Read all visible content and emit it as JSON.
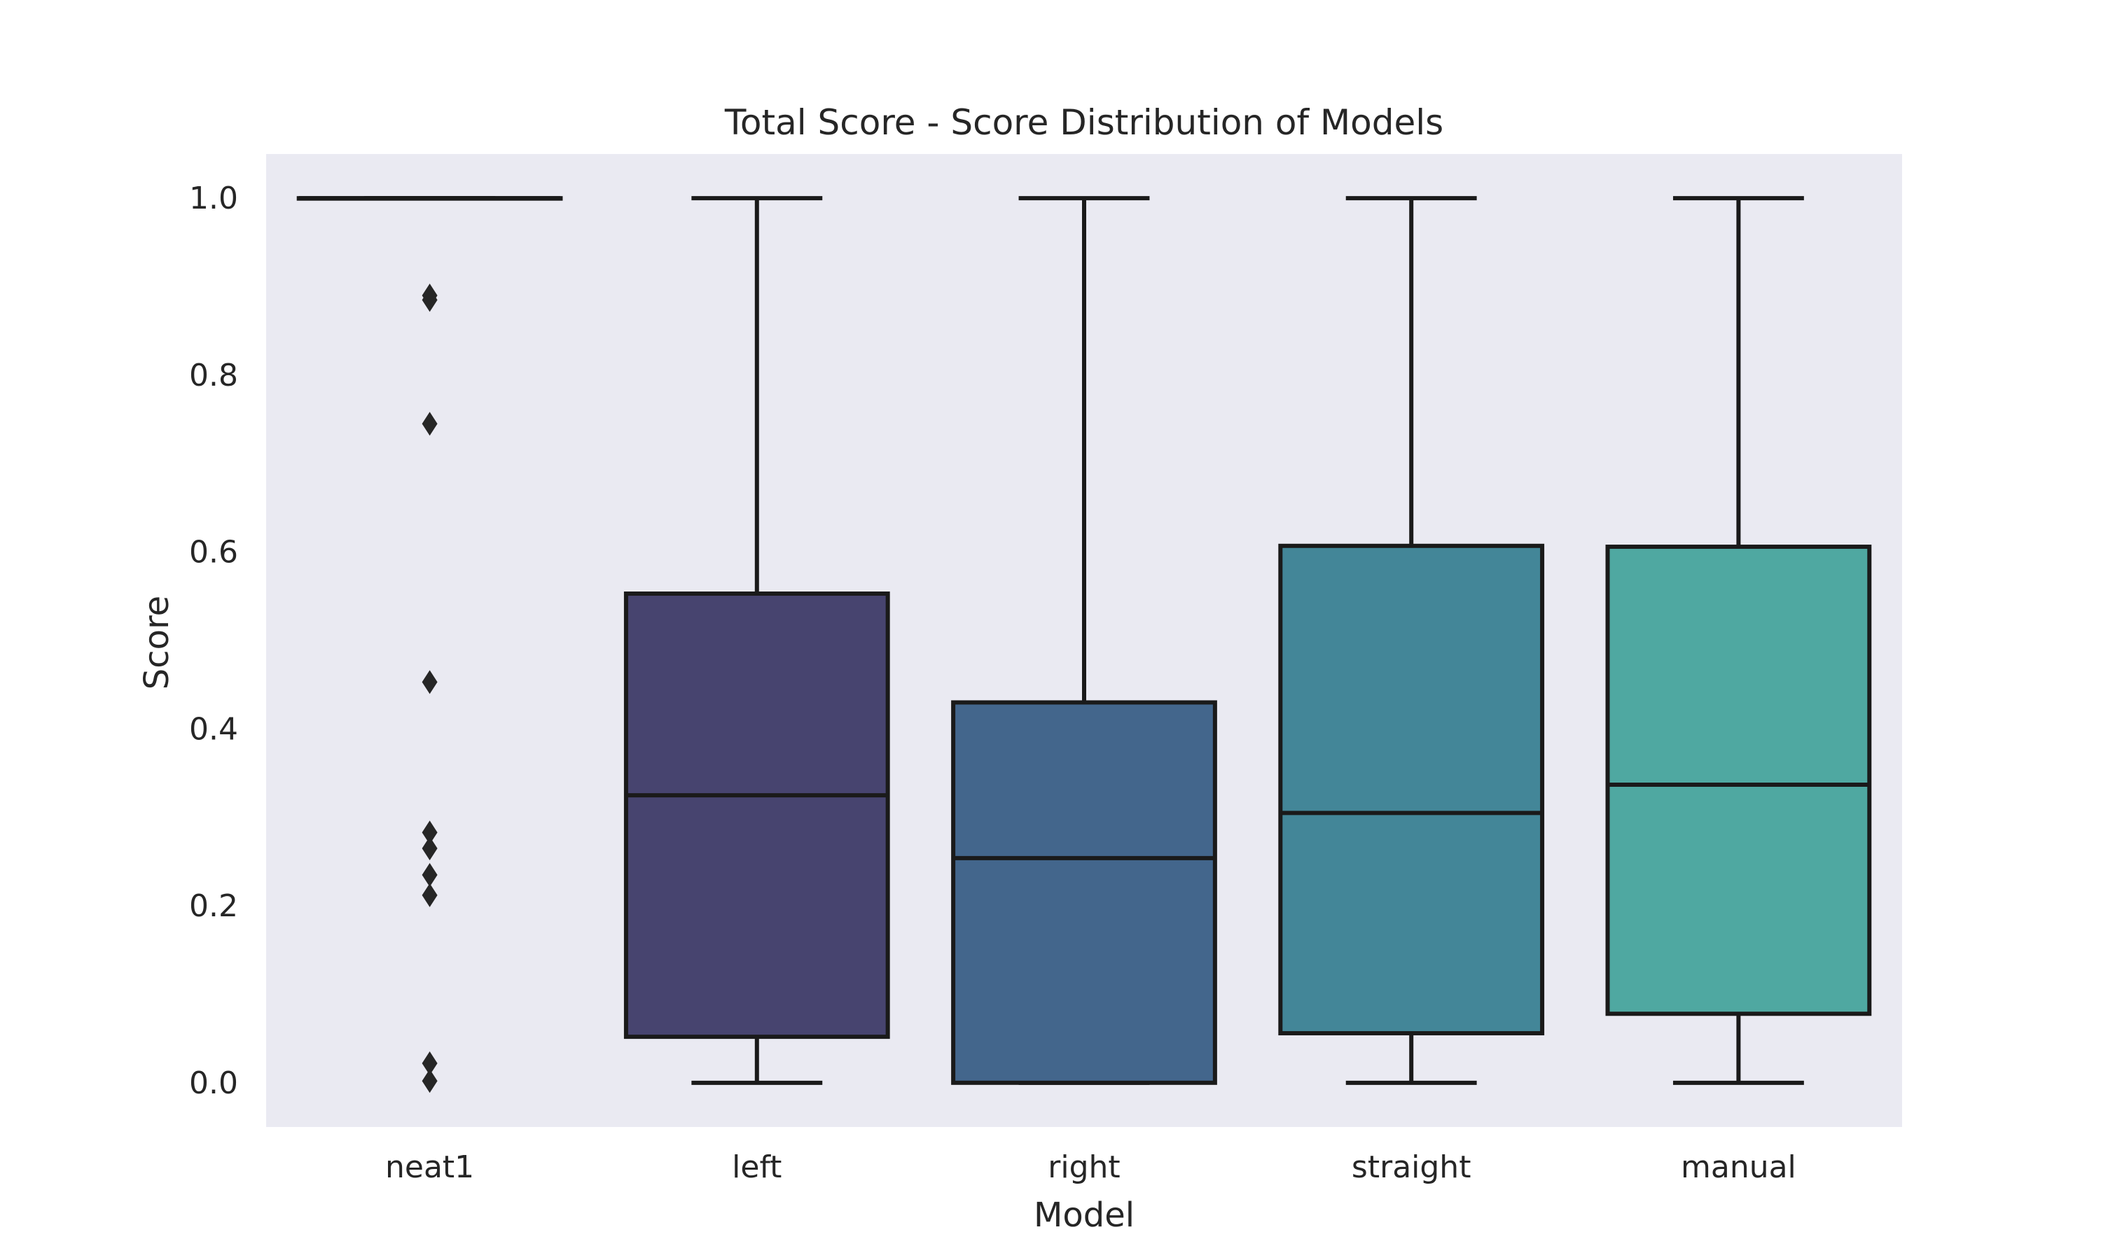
{
  "chart_data": {
    "type": "box",
    "title": "Total Score - Score Distribution of Models",
    "xlabel": "Model",
    "ylabel": "Score",
    "ylim": [
      -0.05,
      1.05
    ],
    "yticks": [
      0.0,
      0.2,
      0.4,
      0.6,
      0.8,
      1.0
    ],
    "ytick_labels": [
      "0.0",
      "0.2",
      "0.4",
      "0.6",
      "0.8",
      "1.0"
    ],
    "categories": [
      "neat1",
      "left",
      "right",
      "straight",
      "manual"
    ],
    "grid": false,
    "background_color": "#eaeaf2",
    "series": [
      {
        "category": "neat1",
        "whisker_low": 1.0,
        "q1": 1.0,
        "median": 1.0,
        "q3": 1.0,
        "whisker_high": 1.0,
        "outliers": [
          0.89,
          0.885,
          0.745,
          0.453,
          0.283,
          0.265,
          0.235,
          0.212,
          0.022,
          0.002
        ],
        "color": "#482878"
      },
      {
        "category": "left",
        "whisker_low": 0.0,
        "q1": 0.052,
        "median": 0.325,
        "q3": 0.553,
        "whisker_high": 1.0,
        "outliers": [],
        "color": "#47446f"
      },
      {
        "category": "right",
        "whisker_low": 0.0,
        "q1": 0.0,
        "median": 0.254,
        "q3": 0.43,
        "whisker_high": 1.0,
        "outliers": [],
        "color": "#43668c"
      },
      {
        "category": "straight",
        "whisker_low": 0.0,
        "q1": 0.056,
        "median": 0.305,
        "q3": 0.607,
        "whisker_high": 1.0,
        "outliers": [],
        "color": "#438698"
      },
      {
        "category": "manual",
        "whisker_low": 0.0,
        "q1": 0.078,
        "median": 0.337,
        "q3": 0.606,
        "whisker_high": 1.0,
        "outliers": [],
        "color": "#4fa8a1"
      }
    ]
  }
}
